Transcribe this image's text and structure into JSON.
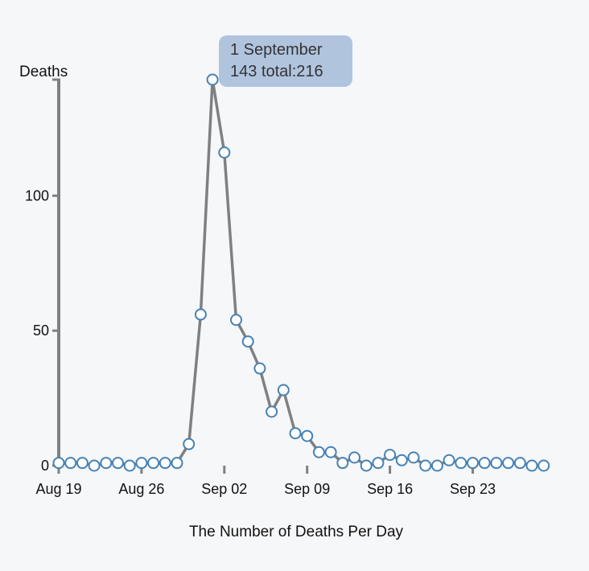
{
  "chart_data": {
    "type": "line",
    "xlabel": "The Number of Deaths Per Day",
    "ylabel": "Deaths",
    "ylim": [
      0,
      143
    ],
    "y_ticks": [
      {
        "value": 0,
        "label": "0"
      },
      {
        "value": 50,
        "label": "50"
      },
      {
        "value": 100,
        "label": "100"
      }
    ],
    "x_ticks": [
      {
        "day": 0,
        "label": "Aug 19"
      },
      {
        "day": 7,
        "label": "Aug 26"
      },
      {
        "day": 14,
        "label": "Sep 02"
      },
      {
        "day": 21,
        "label": "Sep 09"
      },
      {
        "day": 28,
        "label": "Sep 16"
      },
      {
        "day": 35,
        "label": "Sep 23"
      }
    ],
    "x": [
      "Aug 19",
      "Aug 20",
      "Aug 21",
      "Aug 22",
      "Aug 23",
      "Aug 24",
      "Aug 25",
      "Aug 26",
      "Aug 27",
      "Aug 28",
      "Aug 29",
      "Aug 30",
      "Aug 31",
      "Sep 01",
      "Sep 02",
      "Sep 03",
      "Sep 04",
      "Sep 05",
      "Sep 06",
      "Sep 07",
      "Sep 08",
      "Sep 09",
      "Sep 10",
      "Sep 11",
      "Sep 12",
      "Sep 13",
      "Sep 14",
      "Sep 15",
      "Sep 16",
      "Sep 17",
      "Sep 18",
      "Sep 19",
      "Sep 20",
      "Sep 21",
      "Sep 22",
      "Sep 23",
      "Sep 24",
      "Sep 25",
      "Sep 26",
      "Sep 27",
      "Sep 28",
      "Sep 29"
    ],
    "values": [
      1,
      1,
      1,
      0,
      1,
      1,
      0,
      1,
      1,
      1,
      1,
      8,
      56,
      143,
      116,
      54,
      46,
      36,
      20,
      28,
      12,
      11,
      5,
      5,
      1,
      3,
      0,
      1,
      4,
      2,
      3,
      0,
      0,
      2,
      1,
      1,
      1,
      1,
      1,
      1,
      0,
      0
    ],
    "grid": false,
    "line_color": "#808080",
    "marker_stroke": "#4682b4",
    "marker_fill": "#ffffff"
  },
  "tooltip": {
    "line1": "1 September",
    "line2": "143 total:216",
    "background": "#b0c4de"
  }
}
